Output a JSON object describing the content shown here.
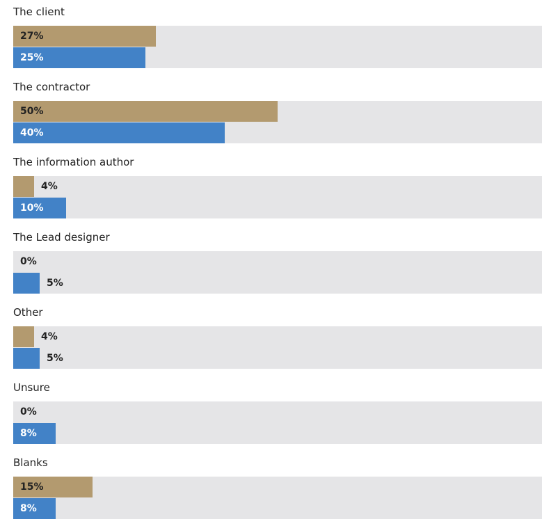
{
  "colors": {
    "series_a": "#b39a6f",
    "series_b": "#4282c7",
    "track": "#e5e5e7",
    "text_dark": "#222222",
    "text_light": "#ffffff"
  },
  "chart_data": {
    "type": "bar",
    "orientation": "horizontal",
    "grouped": true,
    "categories": [
      "The client",
      "The contractor",
      "The information author",
      "The Lead designer",
      "Other",
      "Unsure",
      "Blanks"
    ],
    "series": [
      {
        "color": "#b39a6f",
        "values": [
          27,
          50,
          4,
          0,
          4,
          0,
          15
        ],
        "labels": [
          "27%",
          "50%",
          "4%",
          "0%",
          "4%",
          "0%",
          "15%"
        ]
      },
      {
        "color": "#4282c7",
        "values": [
          25,
          40,
          10,
          5,
          5,
          8,
          8
        ],
        "labels": [
          "25%",
          "40%",
          "10%",
          "5%",
          "5%",
          "8%",
          "8%"
        ]
      }
    ],
    "value_unit": "%",
    "xlim": [
      0,
      100
    ],
    "title": "",
    "xlabel": "",
    "ylabel": "",
    "grid": false,
    "legend": "none"
  }
}
